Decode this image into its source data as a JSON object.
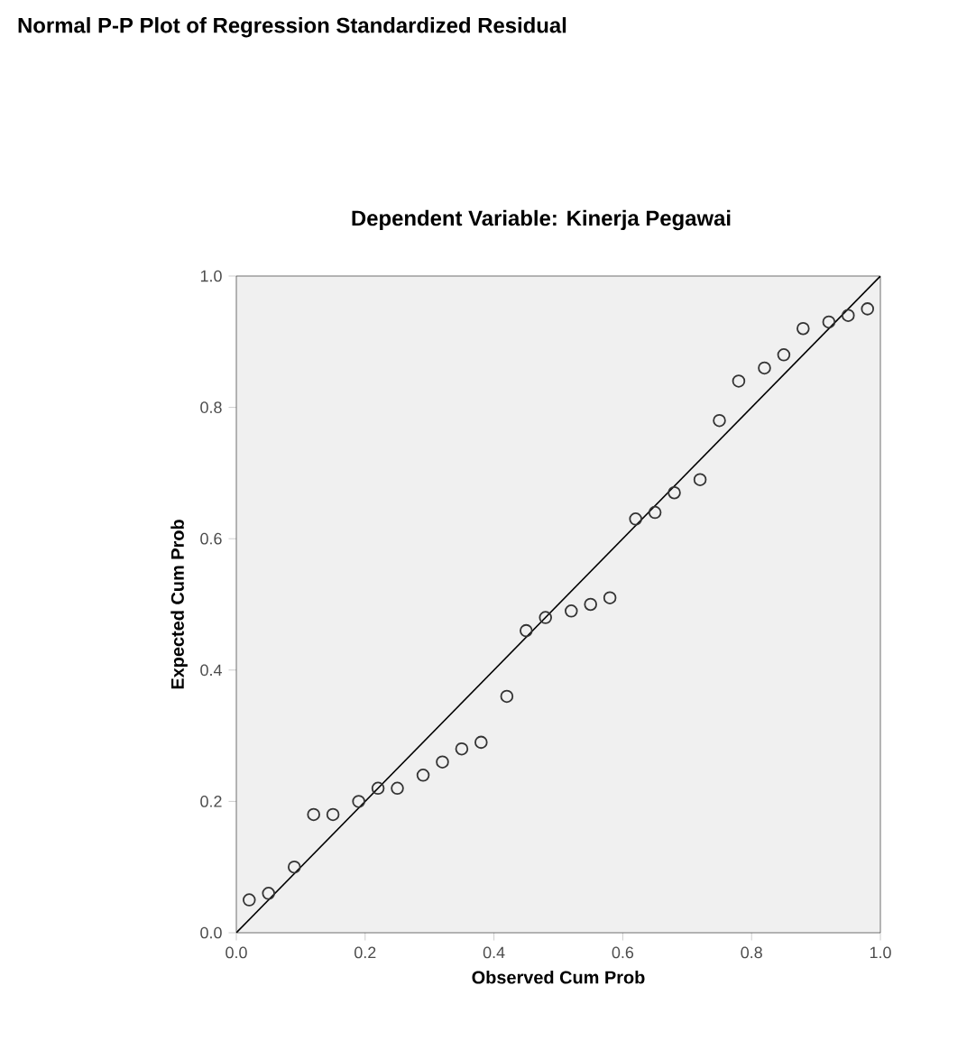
{
  "chart_data": {
    "type": "scatter",
    "title": "Normal P-P Plot of Regression Standardized Residual",
    "subtitle": "Dependent Variable: Kinerja Pegawai",
    "xlabel": "Observed Cum Prob",
    "ylabel": "Expected Cum Prob",
    "xlim": [
      0,
      1
    ],
    "ylim": [
      0,
      1
    ],
    "xticks": [
      {
        "value": 0,
        "label": "0.0"
      },
      {
        "value": 0.2,
        "label": "0.2"
      },
      {
        "value": 0.4,
        "label": "0.4"
      },
      {
        "value": 0.6,
        "label": "0.6"
      },
      {
        "value": 0.8,
        "label": "0.8"
      },
      {
        "value": 1,
        "label": "1.0"
      }
    ],
    "yticks": [
      {
        "value": 0,
        "label": "0.0"
      },
      {
        "value": 0.2,
        "label": "0.2"
      },
      {
        "value": 0.4,
        "label": "0.4"
      },
      {
        "value": 0.6,
        "label": "0.6"
      },
      {
        "value": 0.8,
        "label": "0.8"
      },
      {
        "value": 1,
        "label": "1.0"
      }
    ],
    "grid": false,
    "series": [
      {
        "marker": "circle",
        "color": "#333333",
        "x": [
          0.02,
          0.05,
          0.09,
          0.12,
          0.15,
          0.19,
          0.22,
          0.25,
          0.29,
          0.32,
          0.35,
          0.38,
          0.42,
          0.45,
          0.48,
          0.52,
          0.55,
          0.58,
          0.62,
          0.65,
          0.68,
          0.72,
          0.75,
          0.78,
          0.82,
          0.85,
          0.88,
          0.92,
          0.95,
          0.98
        ],
        "values": [
          0.05,
          0.06,
          0.1,
          0.18,
          0.18,
          0.2,
          0.22,
          0.22,
          0.24,
          0.26,
          0.28,
          0.29,
          0.36,
          0.46,
          0.48,
          0.49,
          0.5,
          0.51,
          0.63,
          0.64,
          0.67,
          0.69,
          0.78,
          0.84,
          0.86,
          0.88,
          0.92,
          0.93,
          0.94,
          0.95
        ]
      },
      {
        "type": "line",
        "color": "#000000",
        "x": [
          0,
          1
        ],
        "values": [
          0,
          1
        ]
      }
    ]
  }
}
